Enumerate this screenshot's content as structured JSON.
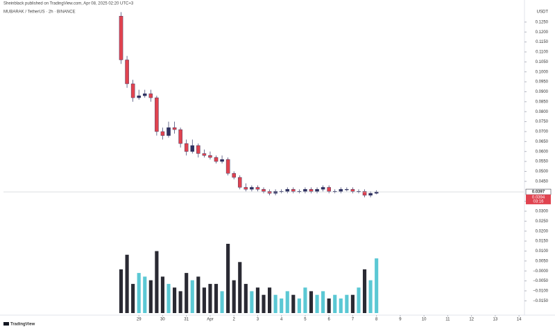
{
  "chart_data": {
    "type": "candlestick",
    "header": "Sheinblack published on TradingView.com, Apr 08, 2025 02:20 UTC+3",
    "title": "MUBARAK / TetherUS · 2h · BINANCE",
    "currency": "USDT",
    "brand": "TradingView",
    "x": [
      28.25,
      28.5,
      28.75,
      29.0,
      29.25,
      29.5,
      29.75,
      30.0,
      30.25,
      30.5,
      30.75,
      31.0,
      31.25,
      31.5,
      31.75,
      32.0,
      32.25,
      32.5,
      32.75,
      33.0,
      33.25,
      33.5,
      33.75,
      34.0,
      34.25,
      34.5,
      34.75,
      35.0,
      35.25,
      35.5,
      35.75,
      36.0,
      36.25,
      36.5,
      36.75,
      37.0,
      37.25,
      37.5,
      37.75,
      38.0,
      38.25,
      38.5,
      38.75,
      39.0
    ],
    "open": [
      0.128,
      0.106,
      0.094,
      0.087,
      0.088,
      0.089,
      0.087,
      0.07,
      0.068,
      0.072,
      0.071,
      0.064,
      0.06,
      0.063,
      0.059,
      0.058,
      0.057,
      0.055,
      0.056,
      0.049,
      0.047,
      0.042,
      0.041,
      0.042,
      0.041,
      0.04,
      0.039,
      0.04,
      0.04,
      0.041,
      0.04,
      0.04,
      0.041,
      0.04,
      0.041,
      0.042,
      0.04,
      0.04,
      0.041,
      0.041,
      0.04,
      0.04,
      0.038,
      0.039
    ],
    "high": [
      0.13,
      0.108,
      0.096,
      0.091,
      0.091,
      0.091,
      0.088,
      0.072,
      0.075,
      0.075,
      0.072,
      0.066,
      0.066,
      0.064,
      0.061,
      0.06,
      0.058,
      0.058,
      0.057,
      0.05,
      0.048,
      0.044,
      0.043,
      0.043,
      0.042,
      0.041,
      0.041,
      0.041,
      0.042,
      0.042,
      0.041,
      0.042,
      0.042,
      0.042,
      0.043,
      0.043,
      0.041,
      0.042,
      0.042,
      0.042,
      0.041,
      0.041,
      0.04,
      0.0405
    ],
    "low": [
      0.104,
      0.092,
      0.085,
      0.086,
      0.087,
      0.085,
      0.068,
      0.066,
      0.067,
      0.069,
      0.062,
      0.058,
      0.059,
      0.057,
      0.057,
      0.056,
      0.054,
      0.054,
      0.048,
      0.046,
      0.041,
      0.04,
      0.04,
      0.04,
      0.039,
      0.038,
      0.038,
      0.039,
      0.039,
      0.039,
      0.039,
      0.039,
      0.039,
      0.039,
      0.04,
      0.039,
      0.039,
      0.039,
      0.04,
      0.039,
      0.039,
      0.037,
      0.037,
      0.0385
    ],
    "close": [
      0.106,
      0.094,
      0.087,
      0.088,
      0.089,
      0.087,
      0.07,
      0.068,
      0.072,
      0.071,
      0.064,
      0.06,
      0.063,
      0.059,
      0.058,
      0.057,
      0.055,
      0.056,
      0.049,
      0.047,
      0.042,
      0.041,
      0.042,
      0.041,
      0.04,
      0.039,
      0.04,
      0.04,
      0.041,
      0.04,
      0.04,
      0.041,
      0.04,
      0.041,
      0.042,
      0.04,
      0.04,
      0.041,
      0.041,
      0.04,
      0.04,
      0.038,
      0.039,
      0.0397
    ],
    "volume": [
      60,
      80,
      40,
      55,
      50,
      45,
      85,
      50,
      40,
      35,
      30,
      55,
      45,
      50,
      35,
      40,
      40,
      30,
      95,
      45,
      70,
      40,
      30,
      35,
      25,
      35,
      25,
      20,
      30,
      25,
      20,
      35,
      30,
      25,
      30,
      20,
      25,
      20,
      25,
      25,
      35,
      60,
      45,
      75
    ],
    "up_color": "#2e3160",
    "down_color": "#e0434f",
    "volume_up_color": "#5bc8d4",
    "volume_down_color": "#2a2a33",
    "last_price": {
      "value": 0.0397,
      "label": "0.0397"
    },
    "marker_price": {
      "value": 0.0394,
      "label": "0.0394",
      "countdown": "03:16"
    },
    "xlim": [
      23.3,
      45.2
    ],
    "xticks": [
      29,
      30,
      31,
      {
        "value": 32,
        "label": "Apr"
      },
      {
        "value": 33,
        "label": "2"
      },
      {
        "value": 34,
        "label": "3"
      },
      {
        "value": 35,
        "label": "4"
      },
      {
        "value": 36,
        "label": "5"
      },
      {
        "value": 37,
        "label": "6"
      },
      {
        "value": 38,
        "label": "7"
      },
      {
        "value": 39,
        "label": "8"
      },
      {
        "value": 40,
        "label": "9"
      },
      {
        "value": 41,
        "label": "10"
      },
      {
        "value": 42,
        "label": "11"
      },
      {
        "value": 43,
        "label": "12"
      },
      {
        "value": 44,
        "label": "13"
      },
      {
        "value": 45,
        "label": "14"
      }
    ],
    "ylim": [
      -0.0222,
      0.1333
    ],
    "yticks": [
      {
        "value": 0.125,
        "label": "0.1250"
      },
      {
        "value": 0.12,
        "label": "0.1200"
      },
      {
        "value": 0.115,
        "label": "0.1150"
      },
      {
        "value": 0.11,
        "label": "0.1100"
      },
      {
        "value": 0.105,
        "label": "0.1050"
      },
      {
        "value": 0.1,
        "label": "0.1000"
      },
      {
        "value": 0.095,
        "label": "0.0950"
      },
      {
        "value": 0.09,
        "label": "0.0900"
      },
      {
        "value": 0.085,
        "label": "0.0850"
      },
      {
        "value": 0.08,
        "label": "0.0800"
      },
      {
        "value": 0.075,
        "label": "0.0750"
      },
      {
        "value": 0.07,
        "label": "0.0700"
      },
      {
        "value": 0.065,
        "label": "0.0650"
      },
      {
        "value": 0.06,
        "label": "0.0600"
      },
      {
        "value": 0.055,
        "label": "0.0550"
      },
      {
        "value": 0.05,
        "label": "0.0500"
      },
      {
        "value": 0.045,
        "label": "0.0450"
      },
      {
        "value": 0.035,
        "label": "0.0350"
      },
      {
        "value": 0.03,
        "label": "0.0300"
      },
      {
        "value": 0.025,
        "label": "0.0250"
      },
      {
        "value": 0.02,
        "label": "0.0200"
      },
      {
        "value": 0.015,
        "label": "0.0150"
      },
      {
        "value": 0.01,
        "label": "0.0100"
      },
      {
        "value": 0.005,
        "label": "0.0050"
      },
      {
        "value": 0,
        "label": "−0.0000"
      },
      {
        "value": -0.005,
        "label": "−0.0050"
      },
      {
        "value": -0.01,
        "label": "−0.0100"
      },
      {
        "value": -0.015,
        "label": "−0.0150"
      }
    ],
    "grid": false
  }
}
